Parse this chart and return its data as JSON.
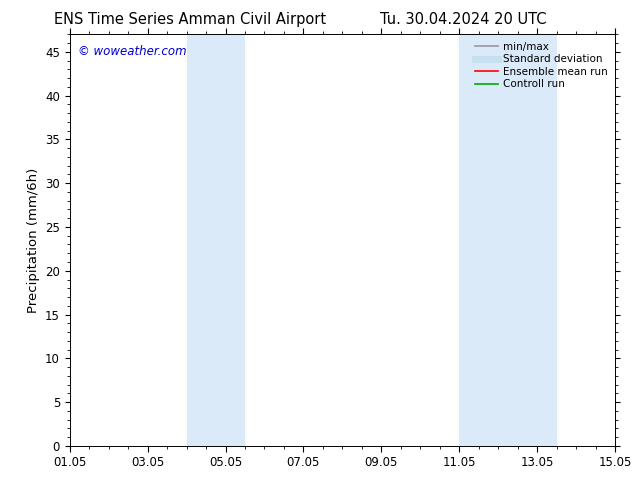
{
  "title_left": "ENS Time Series Amman Civil Airport",
  "title_right": "Tu. 30.04.2024 20 UTC",
  "ylabel": "Precipitation (mm/6h)",
  "xlabel_ticks": [
    "01.05",
    "03.05",
    "05.05",
    "07.05",
    "09.05",
    "11.05",
    "13.05",
    "15.05"
  ],
  "xtick_positions": [
    0,
    2,
    4,
    6,
    8,
    10,
    12,
    14
  ],
  "xlim": [
    0,
    14
  ],
  "ylim": [
    0,
    47
  ],
  "yticks": [
    0,
    5,
    10,
    15,
    20,
    25,
    30,
    35,
    40,
    45
  ],
  "watermark": "© woweather.com",
  "watermark_color": "#0000cc",
  "bg_color": "#ffffff",
  "plot_bg_color": "#ffffff",
  "shaded_regions": [
    {
      "xstart": 3.0,
      "xend": 4.5,
      "color": "#daeaf8"
    },
    {
      "xstart": 10.0,
      "xend": 12.5,
      "color": "#daeaf8"
    }
  ],
  "legend_items": [
    {
      "label": "min/max",
      "color": "#999999",
      "lw": 1.2,
      "style": "solid"
    },
    {
      "label": "Standard deviation",
      "color": "#c8dff0",
      "lw": 5.0,
      "style": "solid"
    },
    {
      "label": "Ensemble mean run",
      "color": "#ff0000",
      "lw": 1.2,
      "style": "solid"
    },
    {
      "label": "Controll run",
      "color": "#00aa00",
      "lw": 1.2,
      "style": "solid"
    }
  ],
  "tick_label_fontsize": 8.5,
  "axis_label_fontsize": 9.5,
  "title_fontsize": 10.5,
  "legend_fontsize": 7.5
}
